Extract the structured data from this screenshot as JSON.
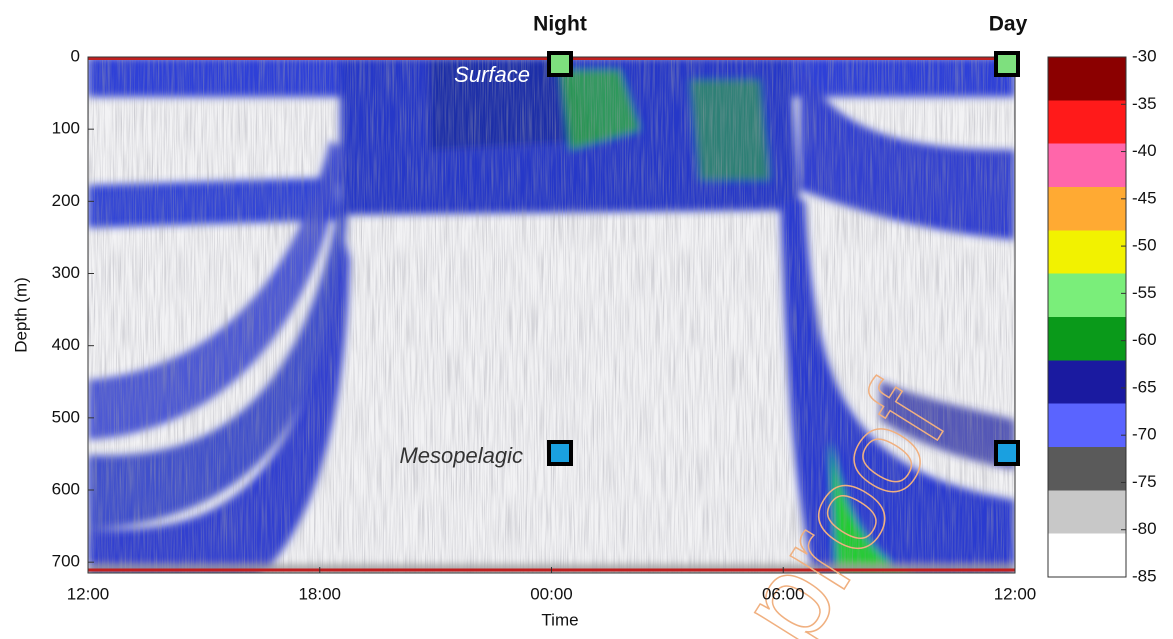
{
  "chart_data": {
    "type": "echogram",
    "ylabel": "Depth (m)",
    "xlabel": "Time",
    "ylim": [
      0,
      715
    ],
    "yticks": [
      0,
      100,
      200,
      300,
      400,
      500,
      600,
      700
    ],
    "xlim": [
      12,
      36
    ],
    "xticks": [
      {
        "value": 12,
        "label": "12:00"
      },
      {
        "value": 18,
        "label": "18:00"
      },
      {
        "value": 24,
        "label": "00:00"
      },
      {
        "value": 30,
        "label": "06:00"
      },
      {
        "value": 36,
        "label": "12:00"
      }
    ],
    "column_labels": [
      "Night",
      "Day"
    ],
    "layer_labels": [
      "Surface",
      "Mesopelagic"
    ],
    "watermark": "proof",
    "colorbar": {
      "lim": [
        -85,
        -30
      ],
      "ticks": [
        -30,
        -35,
        -40,
        -45,
        -50,
        -55,
        -60,
        -65,
        -70,
        -75,
        -80,
        -85
      ],
      "colors": [
        "#ffffff",
        "#c8c8c8",
        "#5a5a5a",
        "#5a64ff",
        "#1a1aa0",
        "#0a9a1a",
        "#7aee7a",
        "#f2f200",
        "#ffaa33",
        "#ff66aa",
        "#ff1a1a",
        "#8b0000"
      ]
    }
  }
}
